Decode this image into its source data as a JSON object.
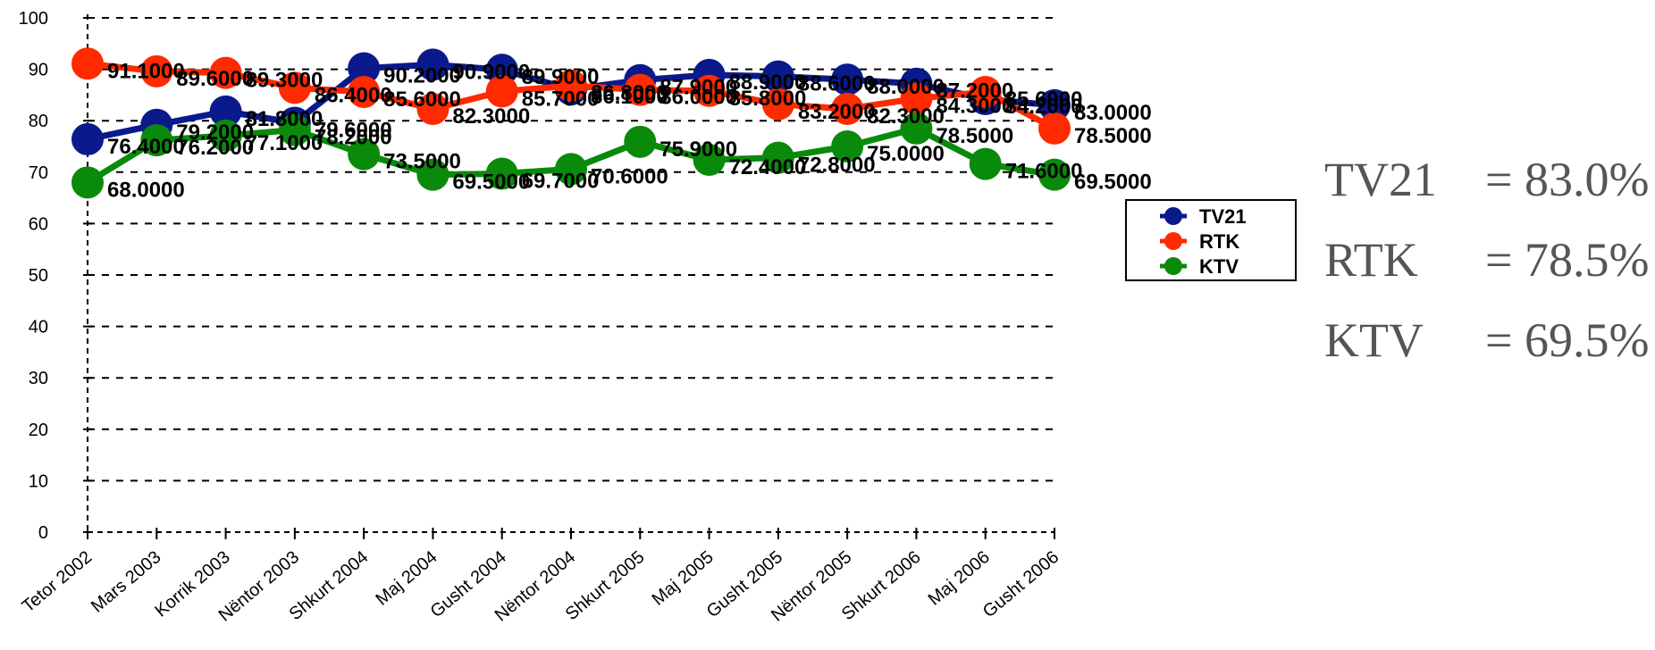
{
  "chart_data": {
    "type": "line",
    "categories": [
      "Tetor 2002",
      "Mars 2003",
      "Korrik 2003",
      "Nëntor 2003",
      "Shkurt 2004",
      "Maj 2004",
      "Gusht 2004",
      "Nëntor 2004",
      "Shkurt 2005",
      "Maj 2005",
      "Gusht 2005",
      "Nëntor 2005",
      "Shkurt 2006",
      "Maj 2006",
      "Gusht 2006"
    ],
    "series": [
      {
        "name": "TV21",
        "color": "#0a1a8c",
        "values": [
          76.4,
          79.2,
          81.8,
          79.6,
          90.2,
          90.9,
          89.9,
          86.1,
          87.9,
          88.9,
          88.6,
          88.0,
          87.2,
          84.2,
          83.0
        ],
        "labels": [
          "76.4000",
          "79.2000",
          "81.8000",
          "79.6000",
          "90.2000",
          "90.9000",
          "89.9000",
          "86.1000",
          "87.9000",
          "88.9000",
          "88.6000",
          "88.0000",
          "87.2000",
          "84.2000",
          "83.0000"
        ]
      },
      {
        "name": "RTK",
        "color": "#ff2a00",
        "values": [
          91.1,
          89.6,
          89.3,
          86.4,
          85.6,
          82.3,
          85.7,
          86.8,
          86.0,
          85.8,
          83.2,
          82.3,
          84.3,
          85.6,
          78.5
        ],
        "labels": [
          "91.1000",
          "89.6000",
          "89.3000",
          "86.4000",
          "85.6000",
          "82.3000",
          "85.7000",
          "86.8000",
          "86.0000",
          "85.8000",
          "83.2000",
          "82.3000",
          "84.3000",
          "85.6000",
          "78.5000"
        ]
      },
      {
        "name": "KTV",
        "color": "#0a8a0a",
        "values": [
          68.0,
          76.2,
          77.1,
          78.2,
          73.5,
          69.5,
          69.7,
          70.6,
          75.9,
          72.4,
          72.8,
          75.0,
          78.5,
          71.6,
          69.5
        ],
        "labels": [
          "68.0000",
          "76.2000",
          "77.1000",
          "78.2000",
          "73.5000",
          "69.5000",
          "69.7000",
          "70.6000",
          "75.9000",
          "72.4000",
          "72.8000",
          "75.0000",
          "78.5000",
          "71.6000",
          "69.5000"
        ]
      }
    ],
    "y_ticks": [
      "0",
      "10",
      "20",
      "30",
      "40",
      "50",
      "60",
      "70",
      "80",
      "90",
      "100"
    ],
    "ylim": [
      0,
      100
    ],
    "grid": true,
    "grid_style": "dashed",
    "legend": "right"
  },
  "summary": [
    {
      "name": "TV21",
      "value": "= 83.0%"
    },
    {
      "name": "RTK",
      "value": "= 78.5%"
    },
    {
      "name": "KTV",
      "value": "= 69.5%"
    }
  ]
}
